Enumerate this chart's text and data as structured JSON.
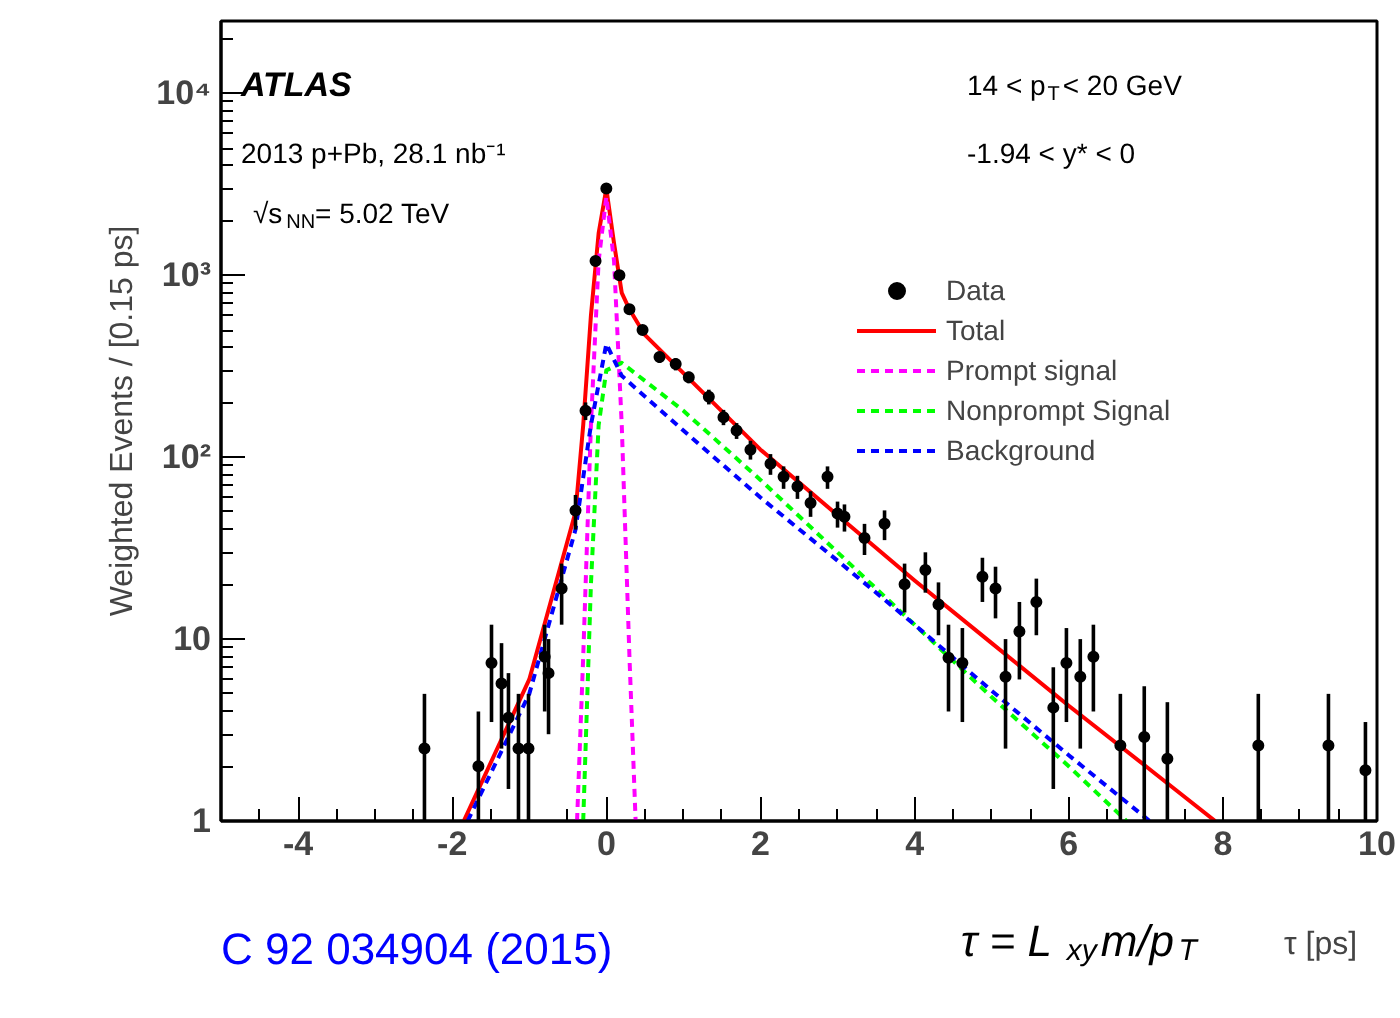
{
  "chart_data": {
    "type": "scatter",
    "xlabel": "τ [ps]",
    "ylabel": "Weighted Events / [0.15 ps]",
    "xlim": [
      -5,
      10
    ],
    "xticks": [
      -4,
      -2,
      0,
      2,
      4,
      6,
      8,
      10
    ],
    "ylim": [
      1,
      25000
    ],
    "yticks": [
      1,
      10,
      {
        "value": 100,
        "label": "10²"
      },
      {
        "value": 1000,
        "label": "10³"
      },
      {
        "value": 10000,
        "label": "10⁴"
      }
    ],
    "log": "y",
    "legend": "top right",
    "grid": false,
    "annotations": [
      "ATLAS",
      "2013 p+Pb, 28.1 nb⁻¹",
      "√s$_{NN}$= 5.02 TeV",
      "14 < p$_{T}$< 20 GeV",
      "-1.94 < y* < 0",
      "C 92 034904 (2015)",
      "τ = L$_{xy}$m/p$_{T}$"
    ],
    "series": [
      {
        "name": "Data",
        "type": "scatter",
        "marker": "circle",
        "color": "#000000",
        "x": [
          -2.36,
          -1.66,
          -1.49,
          -1.36,
          -1.27,
          -1.14,
          -1.01,
          -0.8,
          -0.75,
          -0.58,
          -0.4,
          -0.27,
          -0.14,
          0.0,
          0.17,
          0.3,
          0.47,
          0.69,
          0.9,
          1.07,
          1.33,
          1.52,
          1.69,
          1.87,
          2.13,
          2.3,
          2.48,
          2.65,
          2.87,
          3.0,
          3.09,
          3.35,
          3.61,
          3.87,
          4.14,
          4.31,
          4.44,
          4.62,
          4.88,
          5.05,
          5.18,
          5.36,
          5.58,
          5.8,
          5.97,
          6.15,
          6.32,
          6.67,
          6.98,
          7.28,
          8.46,
          9.37,
          9.85
        ],
        "values": [
          2.5,
          2,
          7.4,
          5.7,
          3.7,
          2.5,
          2.5,
          8,
          6.5,
          19,
          51,
          180,
          1200,
          3000,
          1000,
          650,
          500,
          355,
          325,
          275,
          215,
          166,
          140,
          110,
          92,
          78,
          69,
          56,
          78,
          49,
          47,
          36,
          43,
          20,
          24,
          15.5,
          7.9,
          7.4,
          22,
          19,
          6.2,
          11,
          16,
          4.2,
          7.4,
          6.2,
          8,
          2.6,
          2.9,
          2.2,
          2.6,
          2.6,
          1.9
        ],
        "errors": [
          [
            1,
            5
          ],
          [
            1,
            4
          ],
          [
            3.5,
            12
          ],
          [
            2.5,
            9.5
          ],
          [
            1.5,
            6.5
          ],
          [
            1,
            5
          ],
          [
            1,
            5
          ],
          [
            4,
            12
          ],
          [
            3,
            10
          ],
          [
            12,
            26
          ],
          [
            40,
            62
          ],
          [
            160,
            200
          ],
          [
            1150,
            1250
          ],
          [
            2900,
            3100
          ],
          [
            950,
            1050
          ],
          [
            610,
            690
          ],
          [
            470,
            530
          ],
          [
            330,
            380
          ],
          [
            300,
            350
          ],
          [
            255,
            295
          ],
          [
            195,
            235
          ],
          [
            150,
            182
          ],
          [
            126,
            154
          ],
          [
            97,
            123
          ],
          [
            80,
            104
          ],
          [
            67,
            89
          ],
          [
            59,
            79
          ],
          [
            47,
            65
          ],
          [
            67,
            89
          ],
          [
            41,
            57
          ],
          [
            39,
            55
          ],
          [
            29,
            43
          ],
          [
            35,
            51
          ],
          [
            14,
            26
          ],
          [
            18,
            30
          ],
          [
            10.5,
            20.5
          ],
          [
            4,
            12
          ],
          [
            3.5,
            11.5
          ],
          [
            16,
            28
          ],
          [
            13,
            25
          ],
          [
            2.5,
            10
          ],
          [
            6,
            16
          ],
          [
            10.5,
            21.5
          ],
          [
            1.5,
            7
          ],
          [
            3.5,
            11.5
          ],
          [
            2.5,
            10
          ],
          [
            4,
            12
          ],
          [
            1,
            5
          ],
          [
            1,
            5.5
          ],
          [
            1,
            4.5
          ],
          [
            1,
            5
          ],
          [
            1,
            5
          ],
          [
            1,
            3.5
          ]
        ]
      },
      {
        "name": "Total",
        "type": "line",
        "line_style": "solid",
        "color": "#ff0000",
        "x": [
          -1.85,
          -1,
          -0.4,
          -0.3,
          -0.2,
          -0.1,
          0,
          0.1,
          0.2,
          0.3,
          0.5,
          1,
          2,
          3,
          4,
          5,
          6,
          7,
          7.9
        ],
        "values": [
          1,
          6,
          50,
          150,
          600,
          1700,
          3000,
          1500,
          800,
          650,
          470,
          290,
          110,
          48,
          21,
          9.5,
          4.3,
          2,
          1
        ]
      },
      {
        "name": "Prompt signal",
        "type": "line",
        "line_style": "dashed",
        "color": "#ff00ff",
        "x": [
          -0.38,
          -0.3,
          -0.2,
          -0.1,
          0,
          0.1,
          0.2,
          0.3,
          0.38
        ],
        "values": [
          1,
          8,
          150,
          1200,
          2700,
          1200,
          150,
          8,
          1
        ]
      },
      {
        "name": "Nonprompt Signal",
        "type": "line",
        "line_style": "dashed",
        "color": "#00ff00",
        "x": [
          -0.3,
          -0.2,
          -0.1,
          0,
          0.2,
          1,
          2,
          3,
          4,
          5,
          6,
          6.75
        ],
        "values": [
          1,
          20,
          150,
          300,
          330,
          180,
          75,
          30,
          12,
          4.8,
          2,
          1
        ]
      },
      {
        "name": "Background",
        "type": "line",
        "line_style": "dashed",
        "color": "#0000ff",
        "x": [
          -1.8,
          -1,
          -0.4,
          -0.2,
          0,
          0.2,
          1,
          2,
          3,
          4,
          5,
          6,
          7.05
        ],
        "values": [
          1,
          5,
          40,
          150,
          420,
          280,
          140,
          60,
          27,
          12,
          5.2,
          2.3,
          1
        ]
      }
    ]
  }
}
